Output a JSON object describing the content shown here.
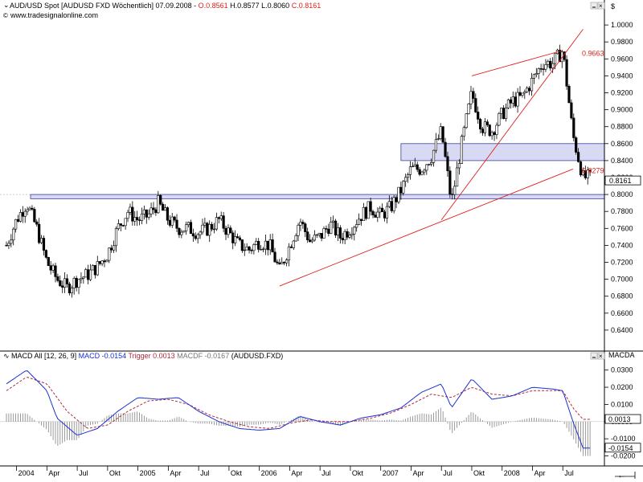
{
  "header": {
    "title": "AUD/USD Spot [AUDUSD FXD  Wöchentlich] 07.09.2008 - ",
    "ohlc_o": "O.0.8561",
    "ohlc_h": " H.0.8577 ",
    "ohlc_l": "L.0.8060 ",
    "ohlc_c": "C.0.8161",
    "watermark": "www.tradesignalonline.com",
    "currency": "$",
    "macd_axis_label": "MACDA"
  },
  "macd_header": {
    "prefix": "MACD All [12, 26, 9] ",
    "macd": "MACD -0.0154 ",
    "trigger": "Trigger 0.0013 ",
    "macdf": "MACDF -0.0167 ",
    "symbol": "(AUDUSD.FXD)"
  },
  "colors": {
    "candle_up": "#ffffff",
    "candle_down": "#000000",
    "trendline": "#e0201b",
    "zone_fill": "#c8cbf0",
    "zone_stroke": "#3b3f9a",
    "macd_line": "#1a2fd0",
    "trigger_line": "#b02a3a",
    "histogram": "#808080"
  },
  "chart_data": [
    {
      "type": "candlestick",
      "title": "AUD/USD Spot weekly",
      "ylim": [
        0.62,
        1.02
      ],
      "y_ticks": [
        "0.6400",
        "0.6600",
        "0.6800",
        "0.7000",
        "0.7200",
        "0.7400",
        "0.7600",
        "0.7800",
        "0.8000",
        "0.8200",
        "0.8400",
        "0.8600",
        "0.8800",
        "0.9000",
        "0.9200",
        "0.9400",
        "0.9600",
        "0.9800",
        "1.0000"
      ],
      "last_price_label": "0.8161",
      "x_labels": [
        "2004",
        "Apr",
        "Jul",
        "Okt",
        "2005",
        "Apr",
        "Jul",
        "Okt",
        "2006",
        "Apr",
        "Jul",
        "Okt",
        "2007",
        "Apr",
        "Jul",
        "Okt",
        "2008",
        "Apr",
        "Jul"
      ],
      "trendline_labels": [
        "0.9663",
        "0.8279"
      ],
      "support_zones": [
        {
          "low": 0.795,
          "high": 0.8
        },
        {
          "low": 0.84,
          "high": 0.86
        }
      ],
      "trendlines": [
        {
          "from": [
            "2006-03",
            0.692
          ],
          "to": [
            "2008-08",
            0.83
          ]
        },
        {
          "from": [
            "2007-07",
            0.77
          ],
          "to": [
            "2008-09",
            0.995
          ]
        },
        {
          "from": [
            "2007-10",
            0.94
          ],
          "to": [
            "2008-07",
            0.97
          ]
        }
      ],
      "close_path": [
        [
          "2003-12",
          0.74
        ],
        [
          "2004-01",
          0.77
        ],
        [
          "2004-02",
          0.79
        ],
        [
          "2004-03",
          0.76
        ],
        [
          "2004-04",
          0.72
        ],
        [
          "2004-05",
          0.7
        ],
        [
          "2004-06",
          0.69
        ],
        [
          "2004-07",
          0.7
        ],
        [
          "2004-08",
          0.705
        ],
        [
          "2004-09",
          0.715
        ],
        [
          "2004-10",
          0.73
        ],
        [
          "2004-11",
          0.76
        ],
        [
          "2004-12",
          0.78
        ],
        [
          "2005-01",
          0.77
        ],
        [
          "2005-02",
          0.775
        ],
        [
          "2005-03",
          0.79
        ],
        [
          "2005-04",
          0.77
        ],
        [
          "2005-05",
          0.76
        ],
        [
          "2005-06",
          0.76
        ],
        [
          "2005-07",
          0.755
        ],
        [
          "2005-08",
          0.76
        ],
        [
          "2005-09",
          0.77
        ],
        [
          "2005-10",
          0.755
        ],
        [
          "2005-11",
          0.74
        ],
        [
          "2005-12",
          0.735
        ],
        [
          "2006-01",
          0.745
        ],
        [
          "2006-02",
          0.74
        ],
        [
          "2006-03",
          0.71
        ],
        [
          "2006-04",
          0.74
        ],
        [
          "2006-05",
          0.77
        ],
        [
          "2006-06",
          0.745
        ],
        [
          "2006-07",
          0.75
        ],
        [
          "2006-08",
          0.765
        ],
        [
          "2006-09",
          0.75
        ],
        [
          "2006-10",
          0.76
        ],
        [
          "2006-11",
          0.775
        ],
        [
          "2006-12",
          0.785
        ],
        [
          "2007-01",
          0.775
        ],
        [
          "2007-02",
          0.785
        ],
        [
          "2007-03",
          0.805
        ],
        [
          "2007-04",
          0.83
        ],
        [
          "2007-05",
          0.83
        ],
        [
          "2007-06",
          0.845
        ],
        [
          "2007-07",
          0.875
        ],
        [
          "2007-08",
          0.79
        ],
        [
          "2007-09",
          0.86
        ],
        [
          "2007-10",
          0.92
        ],
        [
          "2007-11",
          0.88
        ],
        [
          "2007-12",
          0.875
        ],
        [
          "2008-01",
          0.895
        ],
        [
          "2008-02",
          0.91
        ],
        [
          "2008-03",
          0.915
        ],
        [
          "2008-04",
          0.935
        ],
        [
          "2008-05",
          0.955
        ],
        [
          "2008-06",
          0.955
        ],
        [
          "2008-07",
          0.97
        ],
        [
          "2008-08",
          0.87
        ],
        [
          "2008-09",
          0.82
        ]
      ]
    },
    {
      "type": "line",
      "title": "MACD All [12, 26, 9]",
      "ylim": [
        -0.023,
        0.035
      ],
      "y_ticks": [
        "-0.0200",
        "-0.0100",
        "0.0000",
        "0.0100",
        "0.0200",
        "0.0300"
      ],
      "value_labels": [
        "0.0013",
        "-0.0154"
      ],
      "series": [
        {
          "name": "MACD",
          "points": [
            [
              "2003-12",
              0.022
            ],
            [
              "2004-02",
              0.03
            ],
            [
              "2004-04",
              0.018
            ],
            [
              "2004-05",
              0.002
            ],
            [
              "2004-07",
              -0.008
            ],
            [
              "2004-09",
              -0.004
            ],
            [
              "2004-11",
              0.006
            ],
            [
              "2005-01",
              0.014
            ],
            [
              "2005-03",
              0.013
            ],
            [
              "2005-05",
              0.014
            ],
            [
              "2005-07",
              0.006
            ],
            [
              "2005-09",
              0.0
            ],
            [
              "2005-11",
              -0.004
            ],
            [
              "2006-01",
              -0.005
            ],
            [
              "2006-03",
              -0.004
            ],
            [
              "2006-05",
              0.003
            ],
            [
              "2006-07",
              0.0
            ],
            [
              "2006-09",
              -0.002
            ],
            [
              "2006-11",
              0.002
            ],
            [
              "2007-01",
              0.004
            ],
            [
              "2007-03",
              0.008
            ],
            [
              "2007-05",
              0.017
            ],
            [
              "2007-07",
              0.022
            ],
            [
              "2007-08",
              0.008
            ],
            [
              "2007-10",
              0.025
            ],
            [
              "2007-12",
              0.013
            ],
            [
              "2008-02",
              0.015
            ],
            [
              "2008-04",
              0.02
            ],
            [
              "2008-06",
              0.019
            ],
            [
              "2008-07",
              0.018
            ],
            [
              "2008-08",
              0.0
            ],
            [
              "2008-09",
              -0.0154
            ]
          ]
        },
        {
          "name": "Trigger",
          "points": [
            [
              "2003-12",
              0.018
            ],
            [
              "2004-02",
              0.026
            ],
            [
              "2004-04",
              0.022
            ],
            [
              "2004-06",
              0.006
            ],
            [
              "2004-08",
              -0.004
            ],
            [
              "2004-10",
              -0.002
            ],
            [
              "2004-12",
              0.006
            ],
            [
              "2005-02",
              0.012
            ],
            [
              "2005-04",
              0.013
            ],
            [
              "2005-06",
              0.01
            ],
            [
              "2005-08",
              0.004
            ],
            [
              "2005-10",
              0.0
            ],
            [
              "2005-12",
              -0.003
            ],
            [
              "2006-02",
              -0.004
            ],
            [
              "2006-04",
              -0.001
            ],
            [
              "2006-06",
              0.001
            ],
            [
              "2006-08",
              0.0
            ],
            [
              "2006-10",
              0.0
            ],
            [
              "2006-12",
              0.002
            ],
            [
              "2007-02",
              0.005
            ],
            [
              "2007-04",
              0.01
            ],
            [
              "2007-06",
              0.016
            ],
            [
              "2007-08",
              0.014
            ],
            [
              "2007-10",
              0.02
            ],
            [
              "2007-12",
              0.016
            ],
            [
              "2008-02",
              0.015
            ],
            [
              "2008-04",
              0.018
            ],
            [
              "2008-06",
              0.018
            ],
            [
              "2008-07",
              0.018
            ],
            [
              "2008-08",
              0.008
            ],
            [
              "2008-09",
              0.0013
            ]
          ]
        }
      ]
    }
  ]
}
